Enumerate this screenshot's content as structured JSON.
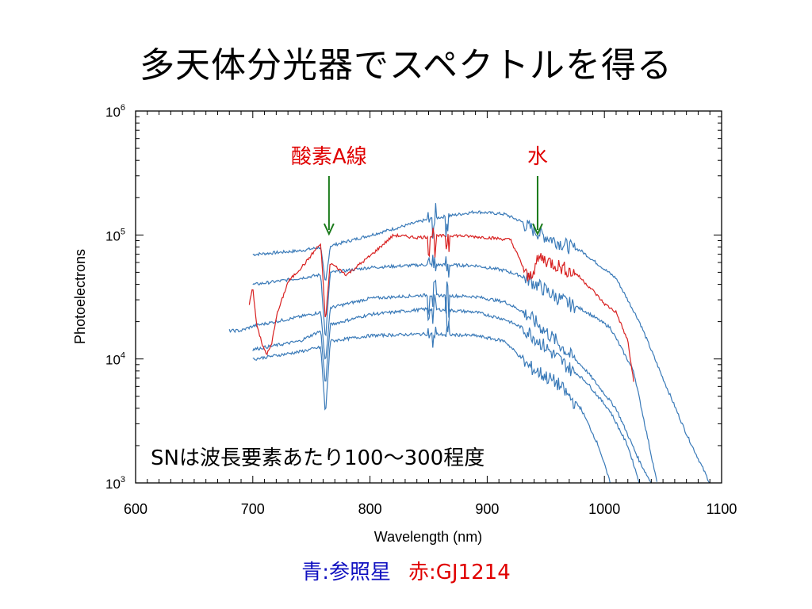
{
  "slide": {
    "title": "多天体分光器でスペクトルを得る",
    "caption_reference": "青:参照星",
    "caption_target": "赤:GJ1214"
  },
  "colors": {
    "reference_star": "#3a7ab8",
    "target": "#d82020",
    "arrow": "#1a7a1a"
  },
  "chart_data": {
    "type": "line",
    "xlabel": "Wavelength (nm)",
    "ylabel": "Photoelectrons",
    "xlim": [
      600,
      1100
    ],
    "ylim": [
      1000,
      1000000
    ],
    "yscale": "log",
    "x_ticks": [
      "600",
      "700",
      "800",
      "900",
      "1000",
      "1100"
    ],
    "y_ticks": [
      {
        "base": "10",
        "exp": "3"
      },
      {
        "base": "10",
        "exp": "4"
      },
      {
        "base": "10",
        "exp": "5"
      },
      {
        "base": "10",
        "exp": "6"
      }
    ],
    "annotations": [
      {
        "text": "酸素A線",
        "x": 765,
        "color": "#e00000"
      },
      {
        "text": "水",
        "x": 943,
        "color": "#e00000"
      }
    ],
    "inset_text": "SNは波長要素あたり100〜300程度",
    "series": [
      {
        "color": "#3a7ab8",
        "points": [
          [
            700,
            70000
          ],
          [
            740,
            75000
          ],
          [
            758,
            80000
          ],
          [
            762,
            40000
          ],
          [
            766,
            82000
          ],
          [
            800,
            100000
          ],
          [
            850,
            135000
          ],
          [
            890,
            155000
          ],
          [
            915,
            148000
          ],
          [
            930,
            128000
          ],
          [
            945,
            105000
          ],
          [
            980,
            75000
          ],
          [
            1010,
            45000
          ],
          [
            1030,
            20000
          ],
          [
            1050,
            7000
          ],
          [
            1070,
            2500
          ],
          [
            1090,
            1000
          ]
        ]
      },
      {
        "color": "#3a7ab8",
        "points": [
          [
            700,
            40000
          ],
          [
            740,
            45000
          ],
          [
            758,
            48000
          ],
          [
            762,
            14000
          ],
          [
            766,
            50000
          ],
          [
            800,
            55000
          ],
          [
            850,
            58000
          ],
          [
            890,
            57000
          ],
          [
            915,
            52000
          ],
          [
            935,
            45000
          ],
          [
            960,
            32000
          ],
          [
            985,
            24000
          ],
          [
            1005,
            18000
          ],
          [
            1025,
            8000
          ],
          [
            1045,
            1000
          ]
        ]
      },
      {
        "color": "#3a7ab8",
        "points": [
          [
            680,
            17000
          ],
          [
            690,
            17000
          ],
          [
            700,
            18500
          ],
          [
            740,
            22000
          ],
          [
            758,
            24000
          ],
          [
            762,
            9000
          ],
          [
            766,
            26000
          ],
          [
            800,
            31000
          ],
          [
            850,
            33000
          ],
          [
            890,
            32000
          ],
          [
            915,
            29000
          ],
          [
            935,
            23000
          ],
          [
            960,
            14000
          ],
          [
            985,
            8000
          ],
          [
            1010,
            4000
          ],
          [
            1030,
            1500
          ],
          [
            1040,
            1000
          ]
        ]
      },
      {
        "color": "#3a7ab8",
        "points": [
          [
            700,
            12000
          ],
          [
            740,
            14000
          ],
          [
            758,
            17000
          ],
          [
            762,
            6000
          ],
          [
            766,
            19000
          ],
          [
            800,
            23000
          ],
          [
            850,
            25500
          ],
          [
            890,
            24000
          ],
          [
            915,
            21000
          ],
          [
            935,
            17000
          ],
          [
            960,
            10500
          ],
          [
            985,
            6500
          ],
          [
            1005,
            3800
          ],
          [
            1020,
            2000
          ],
          [
            1030,
            1000
          ]
        ]
      },
      {
        "color": "#3a7ab8",
        "points": [
          [
            700,
            10000
          ],
          [
            740,
            11500
          ],
          [
            758,
            12500
          ],
          [
            762,
            3500
          ],
          [
            766,
            14000
          ],
          [
            800,
            15500
          ],
          [
            850,
            16000
          ],
          [
            890,
            15500
          ],
          [
            915,
            14000
          ],
          [
            935,
            9000
          ],
          [
            960,
            6500
          ],
          [
            980,
            4000
          ],
          [
            995,
            2000
          ],
          [
            1005,
            1000
          ]
        ]
      },
      {
        "color": "#d82020",
        "points": [
          [
            697,
            28000
          ],
          [
            700,
            38000
          ],
          [
            703,
            20000
          ],
          [
            708,
            13000
          ],
          [
            712,
            11000
          ],
          [
            716,
            13000
          ],
          [
            720,
            22000
          ],
          [
            730,
            42000
          ],
          [
            745,
            60000
          ],
          [
            755,
            80000
          ],
          [
            758,
            85000
          ],
          [
            762,
            20000
          ],
          [
            766,
            60000
          ],
          [
            780,
            48000
          ],
          [
            800,
            68000
          ],
          [
            820,
            100000
          ],
          [
            840,
            96000
          ],
          [
            870,
            100000
          ],
          [
            900,
            96000
          ],
          [
            920,
            92000
          ],
          [
            935,
            45000
          ],
          [
            945,
            68000
          ],
          [
            975,
            50000
          ],
          [
            990,
            36000
          ],
          [
            1000,
            28000
          ],
          [
            1010,
            24000
          ],
          [
            1020,
            14000
          ],
          [
            1025,
            6500
          ]
        ]
      }
    ]
  }
}
